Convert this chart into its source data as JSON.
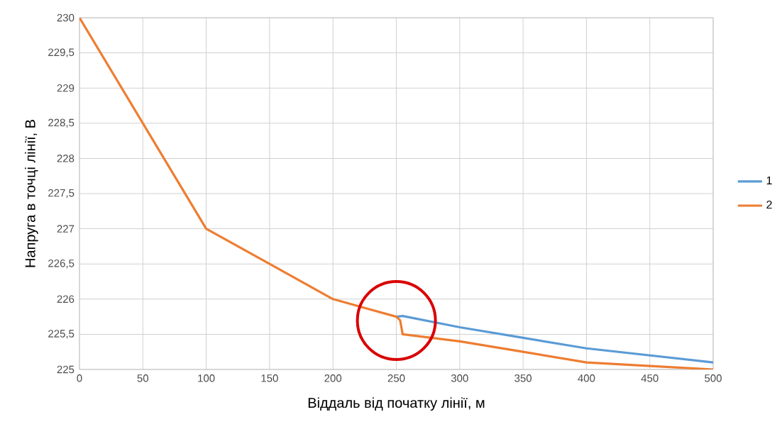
{
  "chart_data": {
    "type": "line",
    "xlabel": "Віддаль від початку лінії, м",
    "ylabel": "Напруга в точці лінії, В",
    "series": [
      {
        "name": "1",
        "color": "#5b9bd5",
        "x": [
          250,
          255,
          300,
          350,
          400,
          450,
          500
        ],
        "values": [
          225.75,
          225.76,
          225.6,
          225.45,
          225.3,
          225.2,
          225.1
        ]
      },
      {
        "name": "2",
        "color": "#ed7d31",
        "x": [
          0,
          50,
          100,
          150,
          200,
          250,
          253,
          255,
          300,
          350,
          400,
          450,
          500
        ],
        "values": [
          230,
          228.5,
          227,
          226.5,
          226,
          225.75,
          225.7,
          225.5,
          225.4,
          225.25,
          225.1,
          225.05,
          225
        ]
      }
    ],
    "xlim": [
      0,
      500
    ],
    "xticks": [
      0,
      50,
      100,
      150,
      200,
      250,
      300,
      350,
      400,
      450,
      500
    ],
    "ylim": [
      225,
      230
    ],
    "yticks": [
      225,
      {
        "value": 225.5,
        "label": "225,5"
      },
      226,
      {
        "value": 226.5,
        "label": "226,5"
      },
      227,
      {
        "value": 227.5,
        "label": "227,5"
      },
      228,
      {
        "value": 228.5,
        "label": "228,5"
      },
      229,
      {
        "value": 229.5,
        "label": "229,5"
      },
      230
    ],
    "grid": true,
    "legend": "right",
    "marker": "none",
    "line_style": "solid"
  }
}
